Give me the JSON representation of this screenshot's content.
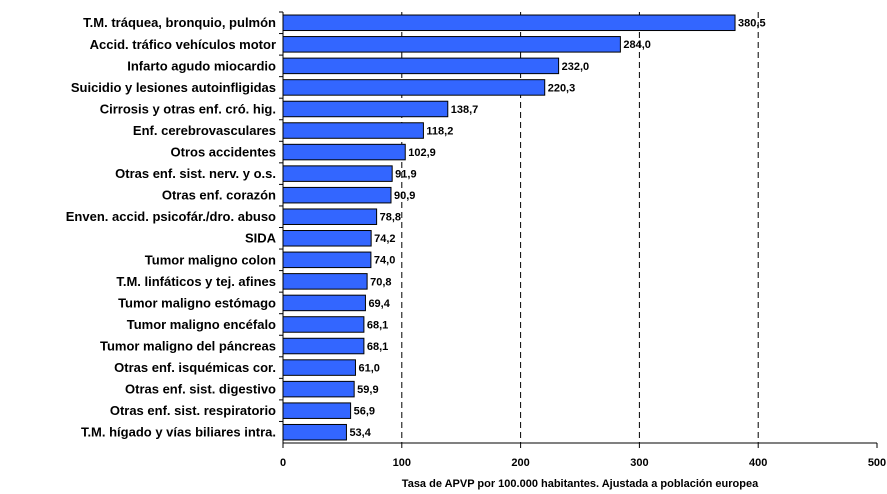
{
  "chart_data": {
    "type": "bar",
    "orientation": "horizontal",
    "x_label": "Tasa de APVP por 100.000 habitantes. Ajustada a población europea",
    "categories": [
      "T.M. tráquea, bronquio,  pulmón",
      "Accid. tráfico vehículos motor",
      "Infarto agudo miocardio",
      "Suicidio y lesiones autoinfligidas",
      "Cirrosis y otras enf. cró. hig.",
      "Enf. cerebrovasculares",
      "Otros accidentes",
      "Otras enf. sist. nerv. y o.s.",
      "Otras enf. corazón",
      "Enven. accid. psicofár./dro. abuso",
      "SIDA",
      "Tumor maligno colon",
      "T.M. linfáticos y tej. afines",
      "Tumor maligno estómago",
      "Tumor maligno encéfalo",
      "Tumor maligno del páncreas",
      "Otras enf. isquémicas cor.",
      "Otras enf. sist. digestivo",
      "Otras enf. sist. respiratorio",
      "T.M. hígado y vías biliares intra."
    ],
    "values": [
      380.5,
      284.0,
      232.0,
      220.3,
      138.7,
      118.2,
      102.9,
      91.9,
      90.9,
      78.8,
      74.2,
      74.0,
      70.8,
      69.4,
      68.1,
      68.1,
      61.0,
      59.9,
      56.9,
      53.4
    ],
    "value_labels": [
      "380,5",
      "284,0",
      "232,0",
      "220,3",
      "138,7",
      "118,2",
      "102,9",
      "91,9",
      "90,9",
      "78,8",
      "74,2",
      "74,0",
      "70,8",
      "69,4",
      "68,1",
      "68,1",
      "61,0",
      "59,9",
      "56,9",
      "53,4"
    ],
    "color": "#3366ff",
    "xlim": [
      0,
      500
    ],
    "xticks": [
      0,
      100,
      200,
      300,
      400,
      500
    ],
    "grid": true
  }
}
